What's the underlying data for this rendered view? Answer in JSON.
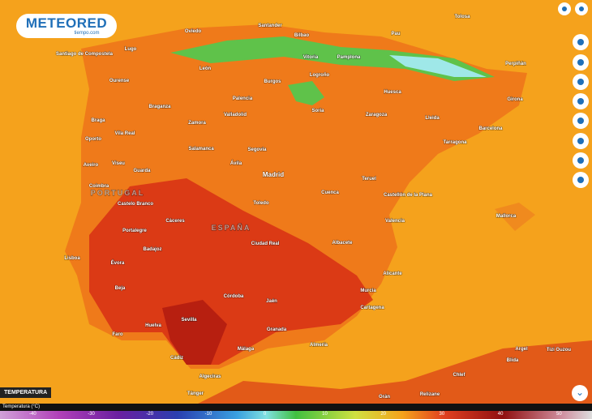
{
  "logo": {
    "name": "METEORED",
    "site": "tiempo.com"
  },
  "layer_tag": "TEMPERATURA",
  "legend": {
    "title": "Temperatura (°C)",
    "labels": [
      "-40",
      "-30",
      "-20",
      "-10",
      "0",
      "10",
      "20",
      "30",
      "40",
      "50"
    ]
  },
  "places": [
    "Oviedo",
    "Santander",
    "Bilbao",
    "Pau",
    "Tolosa",
    "Santiago de Compostela",
    "Lugo",
    "Vitoria",
    "Pamplona",
    "Perpiñán",
    "León",
    "Burgos",
    "Logroño",
    "Huesca",
    "Ourense",
    "Palencia",
    "Soria",
    "Zaragoza",
    "Lleida",
    "Girona",
    "Braganza",
    "Valladolid",
    "Braga",
    "Vila Real",
    "Zamora",
    "Barcelona",
    "Oporto",
    "Salamanca",
    "Segovia",
    "Tarragona",
    "Aveiro",
    "Viseu",
    "Guarda",
    "Ávila",
    "Madrid",
    "Teruel",
    "Coimbra",
    "Cuenca",
    "Castellón de la Plana",
    "PORTUGAL",
    "Castelo Branco",
    "Toledo",
    "Valencia",
    "Mallorca",
    "Cáceres",
    "ESPAÑA",
    "Portalegre",
    "Ciudad Real",
    "Albacete",
    "Badajoz",
    "Lisboa",
    "Évora",
    "Alicante",
    "Beja",
    "Córdoba",
    "Murcia",
    "Jaén",
    "Cartagena",
    "Sevilla",
    "Huelva",
    "Faro",
    "Granada",
    "Almería",
    "Málaga",
    "Cádiz",
    "Algeciras",
    "Argel",
    "Tizi Ouzou",
    "Blida",
    "Chlef",
    "Tánger",
    "Orán",
    "Relizane"
  ]
}
